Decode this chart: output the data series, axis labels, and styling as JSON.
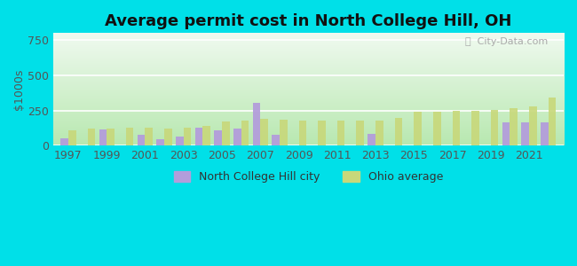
{
  "title": "Average permit cost in North College Hill, OH",
  "ylabel": "$1000s",
  "background_outer": "#00e0e8",
  "years": [
    1997,
    1998,
    1999,
    2000,
    2001,
    2002,
    2003,
    2004,
    2005,
    2006,
    2007,
    2008,
    2009,
    2010,
    2011,
    2012,
    2013,
    2014,
    2015,
    2016,
    2017,
    2018,
    2019,
    2020,
    2021,
    2022
  ],
  "city_values": [
    55,
    0,
    115,
    0,
    75,
    45,
    65,
    130,
    110,
    120,
    305,
    75,
    0,
    0,
    0,
    0,
    85,
    0,
    0,
    0,
    0,
    0,
    0,
    165,
    165,
    165
  ],
  "ohio_values": [
    110,
    120,
    120,
    130,
    130,
    120,
    130,
    140,
    170,
    180,
    190,
    185,
    175,
    175,
    175,
    175,
    180,
    200,
    240,
    240,
    245,
    245,
    255,
    265,
    280,
    345
  ],
  "city_color": "#b39ddb",
  "ohio_color": "#c8d87a",
  "ylim": [
    0,
    800
  ],
  "yticks": [
    0,
    250,
    500,
    750
  ],
  "bar_width": 0.4,
  "legend_city": "North College Hill city",
  "legend_ohio": "Ohio average",
  "watermark": "ⓘ  City-Data.com",
  "grad_top": "#f0faf0",
  "grad_bottom": "#b8e8b0"
}
